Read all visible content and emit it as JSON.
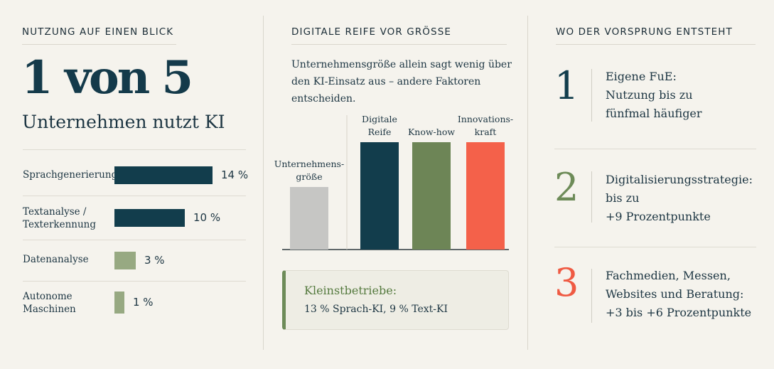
{
  "sections": {
    "usage_title": "NUTZUNG AUF EINEN BLICK",
    "maturity_title": "DIGITALE REIFE VOR GRÖSSE",
    "advantage_title": "WO DER VORSPRUNG ENTSTEHT"
  },
  "usage": {
    "big_stat": "1 von 5",
    "subtitle": "Unternehmen nutzt KI",
    "bars": [
      {
        "label": "Sprachgenerierung",
        "value": 14,
        "value_label": "14 %",
        "color": "#123d4c"
      },
      {
        "label": "Textanalyse / Texterkennung",
        "value": 10,
        "value_label": "10 %",
        "color": "#123d4c"
      },
      {
        "label": "Datenanalyse",
        "value": 3,
        "value_label": "3 %",
        "color": "#97a982"
      },
      {
        "label": "Autonome Maschinen",
        "value": 1,
        "value_label": "1 %",
        "color": "#97a982"
      }
    ]
  },
  "maturity": {
    "intro": "Unternehmensgröße allein sagt wenig über den KI-Einsatz aus – andere Faktoren entscheiden.",
    "callout_title": "Kleinstbetriebe:",
    "callout_text": "13 % Sprach-KI, 9 % Text-KI"
  },
  "chart_data": {
    "type": "bar",
    "categories": [
      "Unternehmensgröße",
      "Digitale Reife",
      "Know-how",
      "Innovationskraft"
    ],
    "category_label_lines": [
      [
        "Unternehmens-",
        "größe"
      ],
      [
        "Digitale",
        "Reife"
      ],
      [
        "Know-how"
      ],
      [
        "Innovations-",
        "kraft"
      ]
    ],
    "values": [
      0.58,
      1.0,
      1.0,
      1.0
    ],
    "colors": [
      "#c6c6c4",
      "#123d4c",
      "#6d8556",
      "#f4614a"
    ],
    "ylim": [
      0,
      1
    ]
  },
  "advantages": {
    "items": [
      {
        "number": "1",
        "text": "Eigene FuE: Nutzung bis zu fünfmal häufiger",
        "lines": [
          "Eigene FuE:",
          "Nutzung bis zu",
          "fünfmal häufiger"
        ],
        "color": "#123d4c"
      },
      {
        "number": "2",
        "text": "Digitalisierungsstrategie: bis zu +9 Prozentpunkte",
        "lines": [
          "Digitalisierungsstrategie:",
          "bis zu",
          "+9 Prozentpunkte"
        ],
        "color": "#6d8b58"
      },
      {
        "number": "3",
        "text": "Fachmedien, Messen, Websites und Beratung: +3 bis +6 Prozentpunkte",
        "lines": [
          "Fachmedien, Messen,",
          "Websites und Beratung:",
          "+3 bis +6 Prozentpunkte"
        ],
        "color": "#ef5a43"
      }
    ]
  }
}
